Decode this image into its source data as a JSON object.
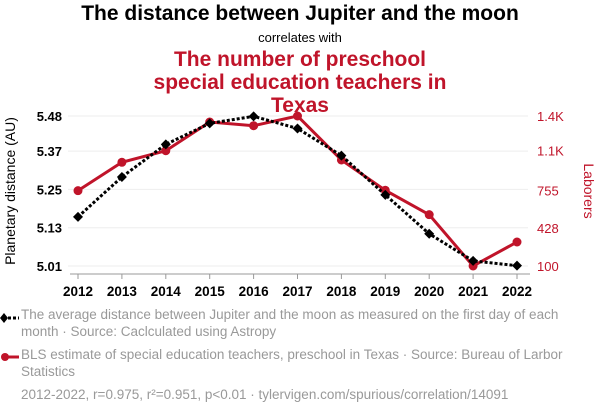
{
  "title": "The distance between Jupiter and the moon",
  "connector": "correlates with",
  "subtitle": "The number of preschool special education teachers in Texas",
  "legend": [
    {
      "text": "The average distance between Jupiter and the moon as measured on the first day of each month · Source: Caclculated using Astropy",
      "color": "#000000"
    },
    {
      "text": "BLS estimate of special education teachers, preschool in Texas · Source: Bureau of Larbor Statistics",
      "color": "#c0142a"
    }
  ],
  "footer": "2012-2022, r=0.975, r²=0.951, p<0.01 · tylervigen.com/spurious/correlation/14091",
  "chart_data": {
    "type": "line",
    "title": "The distance between Jupiter and the moon correlates with The number of preschool special education teachers in Texas",
    "x": [
      2012,
      2013,
      2014,
      2015,
      2016,
      2017,
      2018,
      2019,
      2020,
      2021,
      2022
    ],
    "xtick_labels": [
      "2012",
      "2013",
      "2014",
      "2015",
      "2016",
      "2017",
      "2018",
      "2019",
      "2020",
      "2021",
      "2022"
    ],
    "ylabel": "Planetary distance (AU)",
    "y2label": "Laborers",
    "ylim": [
      5.01,
      5.48
    ],
    "y2lim": [
      100,
      1400
    ],
    "ytick_values": [
      5.48,
      5.37,
      5.25,
      5.13,
      5.01
    ],
    "ytick_labels": [
      "5.48",
      "5.37",
      "5.25",
      "5.13",
      "5.01"
    ],
    "y2tick_values": [
      1400,
      1100,
      755,
      428,
      100
    ],
    "y2tick_labels": [
      "1.4K",
      "1.1K",
      "755",
      "428",
      "100"
    ],
    "grid": true,
    "series": [
      {
        "name": "The average distance between Jupiter and the moon",
        "axis": "left",
        "color": "#000000",
        "style": "dotted",
        "marker": "diamond",
        "values": [
          5.164,
          5.289,
          5.391,
          5.457,
          5.479,
          5.441,
          5.356,
          5.233,
          5.111,
          5.026,
          5.011
        ]
      },
      {
        "name": "BLS estimate of special education teachers, preschool in Texas",
        "axis": "right",
        "color": "#c0142a",
        "style": "solid",
        "marker": "circle",
        "values": [
          753,
          999,
          1099,
          1348,
          1316,
          1400,
          1019,
          756,
          545,
          100,
          308
        ]
      }
    ]
  }
}
